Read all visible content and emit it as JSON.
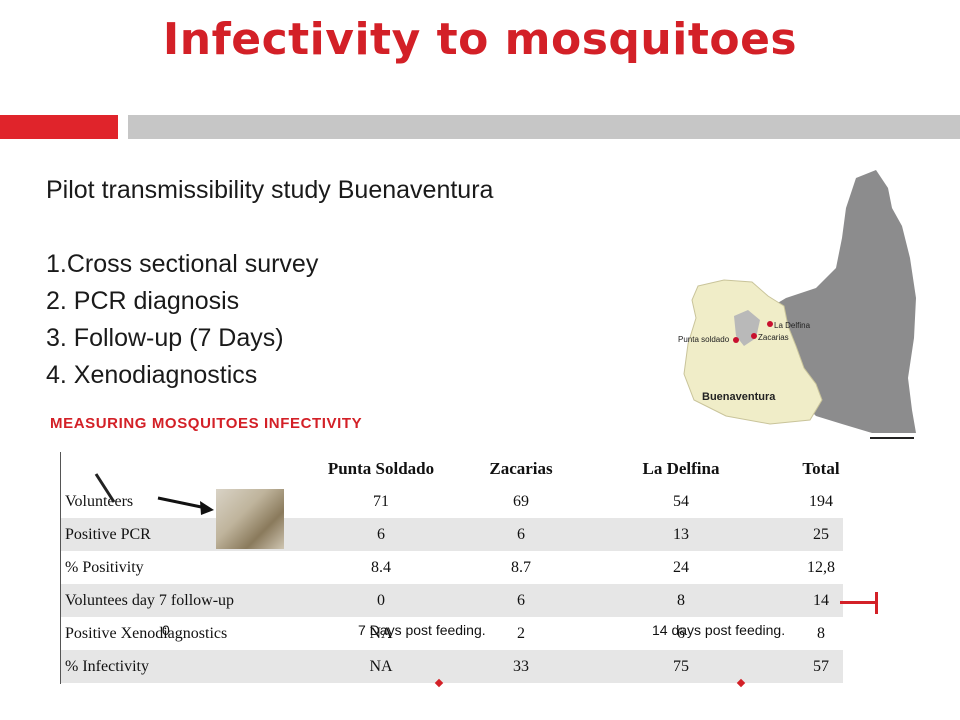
{
  "slide": {
    "title": "Infectivity to mosquitoes",
    "intro": "Pilot transmissibility study Buenaventura",
    "steps": [
      "1.Cross sectional survey",
      "2. PCR diagnosis",
      "3. Follow-up (7 Days)",
      "4. Xenodiagnostics"
    ],
    "section_heading": "MEASURING MOSQUITOES INFECTIVITY",
    "colors": {
      "title": "#d32027",
      "accent_bar": "#e0242b",
      "gray_bar": "#c6c6c6",
      "map_gray": "#8c8c8d",
      "map_region": "#f0edc8"
    }
  },
  "map": {
    "places": [
      "La Delfina",
      "Punta soldado",
      "Zacarias"
    ],
    "region_label": "Buenaventura"
  },
  "table": {
    "columns": [
      "Punta Soldado",
      "Zacarias",
      "La Delfina",
      "Total"
    ],
    "rows": [
      {
        "label": "Volunteers",
        "values": [
          "71",
          "69",
          "54",
          "194"
        ]
      },
      {
        "label": "Positive PCR",
        "values": [
          "6",
          "6",
          "13",
          "25"
        ]
      },
      {
        "label": "% Positivity",
        "values": [
          "8.4",
          "8.7",
          "24",
          "12,8"
        ]
      },
      {
        "label": "Voluntees day 7 follow-up",
        "values": [
          "0",
          "6",
          "8",
          "14"
        ]
      },
      {
        "label": "Positive Xenodiagnostics",
        "values": [
          "NA",
          "2",
          "6",
          "8"
        ]
      },
      {
        "label": "% Infectivity",
        "values": [
          "NA",
          "33",
          "75",
          "57"
        ]
      }
    ]
  },
  "overlay": {
    "zero": "0",
    "day7": "7 Days post feeding.",
    "day14": "14 days post feeding."
  }
}
